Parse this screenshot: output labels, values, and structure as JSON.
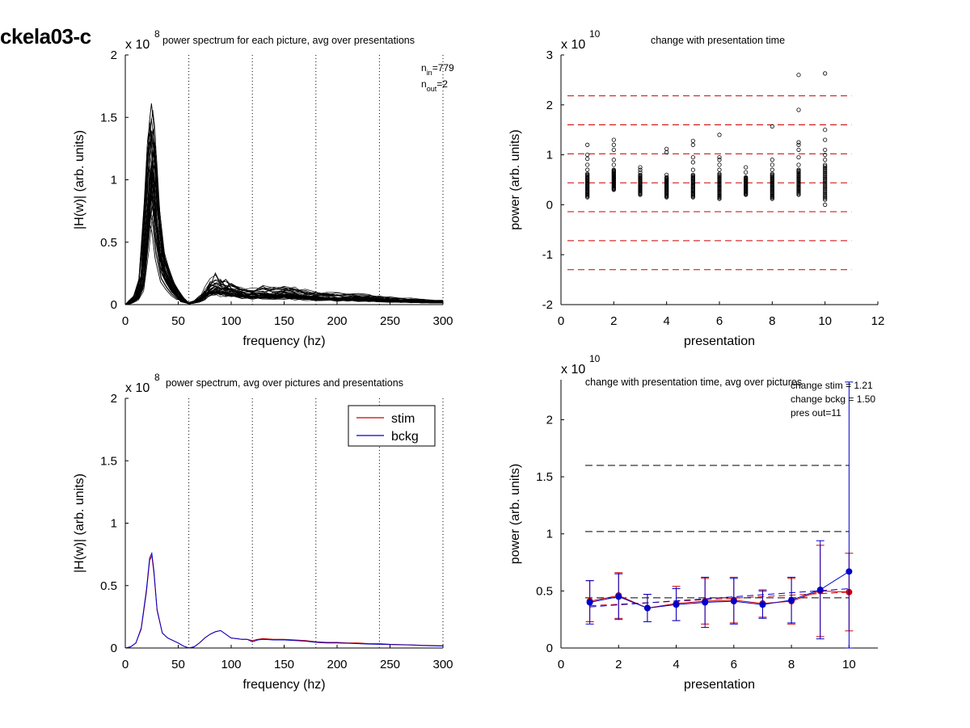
{
  "page": {
    "title": "ckela03-c"
  },
  "colors": {
    "stim": "#cc0000",
    "bckg": "#0000cc",
    "ref_red": "#cc0000",
    "ref_black": "#000000",
    "trace": "#000000"
  },
  "chart_data": [
    {
      "id": "p1",
      "type": "line",
      "title": "power spectrum for each picture, avg over presentations",
      "xlabel": "frequency (hz)",
      "ylabel": "|H(w)| (arb. units)",
      "xlim": [
        0,
        300
      ],
      "ylim": [
        0,
        2
      ],
      "xticks": [
        0,
        50,
        100,
        150,
        200,
        250,
        300
      ],
      "yticks": [
        0,
        0.5,
        1,
        1.5,
        2
      ],
      "ytick_labels": [
        "0",
        "0.5",
        "1",
        "1.5",
        "2"
      ],
      "exponent_label": "x 10",
      "exponent_power": "8",
      "vlines": [
        60,
        120,
        180,
        240,
        300
      ],
      "annotation": {
        "n_in": "n",
        "n_in_sub": "in",
        "n_in_val": "=779",
        "n_out": "n",
        "n_out_sub": "out",
        "n_out_val": "=2"
      },
      "mean_curve": {
        "x": [
          0,
          5,
          10,
          15,
          20,
          23,
          25,
          27,
          30,
          35,
          40,
          45,
          50,
          55,
          60,
          65,
          70,
          75,
          80,
          85,
          90,
          95,
          100,
          110,
          120,
          130,
          140,
          150,
          160,
          170,
          180,
          190,
          200,
          210,
          220,
          230,
          240,
          250,
          260,
          270,
          280,
          290,
          300
        ],
        "y": [
          0.0,
          0.02,
          0.05,
          0.15,
          0.6,
          0.95,
          1.05,
          0.95,
          0.6,
          0.3,
          0.2,
          0.12,
          0.07,
          0.03,
          0.01,
          0.02,
          0.04,
          0.08,
          0.12,
          0.14,
          0.13,
          0.12,
          0.11,
          0.09,
          0.08,
          0.09,
          0.08,
          0.085,
          0.08,
          0.07,
          0.06,
          0.06,
          0.055,
          0.05,
          0.05,
          0.045,
          0.04,
          0.035,
          0.03,
          0.03,
          0.025,
          0.022,
          0.02
        ]
      },
      "n_traces": 40
    },
    {
      "id": "p2",
      "type": "scatter",
      "title": "change with presentation time",
      "xlabel": "presentation",
      "ylabel": "power (arb. units)",
      "xlim": [
        0,
        12
      ],
      "ylim": [
        -2,
        3
      ],
      "xticks": [
        0,
        2,
        4,
        6,
        8,
        10,
        12
      ],
      "yticks": [
        -2,
        -1,
        0,
        1,
        2,
        3
      ],
      "ytick_labels": [
        "-2",
        "-1",
        "0",
        "1",
        "2",
        "3"
      ],
      "exponent_label": "x 10",
      "exponent_power": "10",
      "hlines": [
        2.18,
        1.6,
        1.02,
        0.44,
        -0.14,
        -0.72,
        -1.3
      ],
      "hline_range": [
        0,
        11
      ],
      "clusters": [
        {
          "x": 1,
          "low": 0.15,
          "high": 0.62,
          "outliers": [
            0.7,
            0.8,
            0.92,
            1.0,
            1.2
          ]
        },
        {
          "x": 2,
          "low": 0.3,
          "high": 0.7,
          "outliers": [
            0.8,
            0.9,
            1.1,
            1.2,
            1.3
          ]
        },
        {
          "x": 3,
          "low": 0.2,
          "high": 0.6,
          "outliers": [
            0.65,
            0.7,
            0.75
          ]
        },
        {
          "x": 4,
          "low": 0.15,
          "high": 0.55,
          "outliers": [
            0.6,
            1.05,
            1.12
          ]
        },
        {
          "x": 5,
          "low": 0.15,
          "high": 0.6,
          "outliers": [
            0.7,
            0.85,
            0.95,
            1.2,
            1.28
          ]
        },
        {
          "x": 6,
          "low": 0.12,
          "high": 0.62,
          "outliers": [
            0.7,
            0.8,
            0.9,
            0.95,
            1.4
          ]
        },
        {
          "x": 7,
          "low": 0.2,
          "high": 0.55,
          "outliers": [
            0.65,
            0.75
          ]
        },
        {
          "x": 8,
          "low": 0.12,
          "high": 0.62,
          "outliers": [
            0.7,
            0.8,
            0.9,
            1.57
          ]
        },
        {
          "x": 9,
          "low": 0.2,
          "high": 0.7,
          "outliers": [
            0.8,
            0.95,
            1.1,
            1.2,
            1.25,
            1.9,
            2.6
          ]
        },
        {
          "x": 10,
          "low": 0.1,
          "high": 0.8,
          "outliers": [
            0.0,
            0.9,
            1.0,
            1.1,
            1.3,
            1.5,
            2.63
          ]
        }
      ]
    },
    {
      "id": "p3",
      "type": "line",
      "title": "power spectrum, avg over pictures and presentations",
      "xlabel": "frequency (hz)",
      "ylabel": "|H(w)| (arb. units)",
      "xlim": [
        0,
        300
      ],
      "ylim": [
        0,
        2
      ],
      "xticks": [
        0,
        50,
        100,
        150,
        200,
        250,
        300
      ],
      "yticks": [
        0,
        0.5,
        1,
        1.5,
        2
      ],
      "ytick_labels": [
        "0",
        "0.5",
        "1",
        "1.5",
        "2"
      ],
      "exponent_label": "x 10",
      "exponent_power": "8",
      "vlines": [
        60,
        120,
        180,
        240,
        300
      ],
      "legend": {
        "position": "top-right",
        "entries": [
          "stim",
          "bckg"
        ]
      },
      "series": [
        {
          "name": "stim",
          "x": [
            0,
            5,
            10,
            15,
            20,
            23,
            25,
            27,
            30,
            35,
            40,
            45,
            50,
            55,
            60,
            65,
            70,
            75,
            80,
            85,
            90,
            95,
            100,
            105,
            110,
            115,
            120,
            125,
            130,
            140,
            150,
            160,
            170,
            180,
            190,
            200,
            210,
            220,
            230,
            240,
            250,
            260,
            270,
            280,
            290,
            300
          ],
          "y": [
            0.0,
            0.01,
            0.04,
            0.15,
            0.45,
            0.7,
            0.74,
            0.6,
            0.3,
            0.12,
            0.08,
            0.06,
            0.04,
            0.015,
            0.0,
            0.01,
            0.04,
            0.08,
            0.11,
            0.13,
            0.14,
            0.11,
            0.08,
            0.075,
            0.07,
            0.07,
            0.06,
            0.07,
            0.075,
            0.07,
            0.07,
            0.065,
            0.06,
            0.05,
            0.045,
            0.045,
            0.04,
            0.04,
            0.035,
            0.035,
            0.03,
            0.028,
            0.025,
            0.022,
            0.02,
            0.018
          ]
        },
        {
          "name": "bckg",
          "x": [
            0,
            5,
            10,
            15,
            20,
            23,
            25,
            27,
            30,
            35,
            40,
            45,
            50,
            55,
            60,
            65,
            70,
            75,
            80,
            85,
            90,
            95,
            100,
            105,
            110,
            115,
            120,
            125,
            130,
            140,
            150,
            160,
            170,
            180,
            190,
            200,
            210,
            220,
            230,
            240,
            250,
            260,
            270,
            280,
            290,
            300
          ],
          "y": [
            0.0,
            0.01,
            0.04,
            0.16,
            0.47,
            0.72,
            0.76,
            0.62,
            0.31,
            0.12,
            0.08,
            0.06,
            0.04,
            0.015,
            0.0,
            0.01,
            0.04,
            0.08,
            0.11,
            0.13,
            0.14,
            0.11,
            0.08,
            0.075,
            0.07,
            0.07,
            0.05,
            0.065,
            0.07,
            0.065,
            0.065,
            0.06,
            0.055,
            0.045,
            0.04,
            0.04,
            0.038,
            0.035,
            0.032,
            0.03,
            0.028,
            0.026,
            0.024,
            0.02,
            0.018,
            0.016
          ]
        }
      ]
    },
    {
      "id": "p4",
      "type": "line",
      "title": "change with presentation time, avg over pictures",
      "xlabel": "presentation",
      "ylabel": "power (arb. units)",
      "xlim": [
        0,
        11
      ],
      "ylim": [
        0,
        2.35
      ],
      "xticks": [
        0,
        2,
        4,
        6,
        8,
        10
      ],
      "yticks": [
        0,
        0.5,
        1,
        1.5,
        2
      ],
      "ytick_labels": [
        "0",
        "0.5",
        "1",
        "1.5",
        "2"
      ],
      "exponent_label": "x 10",
      "exponent_power": "10",
      "hlines": [
        1.6,
        1.02,
        0.44
      ],
      "hline_range": [
        0,
        10
      ],
      "annotations": [
        "change stim = 1.21",
        "change bckg = 1.50",
        "pres out=11"
      ],
      "series": [
        {
          "name": "stim",
          "x": [
            1,
            2,
            3,
            4,
            5,
            6,
            7,
            8,
            9,
            10
          ],
          "y": [
            0.41,
            0.46,
            0.35,
            0.39,
            0.41,
            0.42,
            0.39,
            0.41,
            0.5,
            0.49
          ],
          "err": [
            0.18,
            0.2,
            0.12,
            0.15,
            0.2,
            0.2,
            0.12,
            0.2,
            0.4,
            0.34
          ],
          "fit": [
            0.37,
            0.49
          ]
        },
        {
          "name": "bckg",
          "x": [
            1,
            2,
            3,
            4,
            5,
            6,
            7,
            8,
            9,
            10
          ],
          "y": [
            0.4,
            0.45,
            0.35,
            0.38,
            0.4,
            0.41,
            0.38,
            0.42,
            0.51,
            0.67
          ],
          "err": [
            0.19,
            0.2,
            0.12,
            0.14,
            0.22,
            0.2,
            0.12,
            0.2,
            0.43,
            1.66
          ],
          "fit": [
            0.36,
            0.52
          ]
        }
      ]
    }
  ]
}
